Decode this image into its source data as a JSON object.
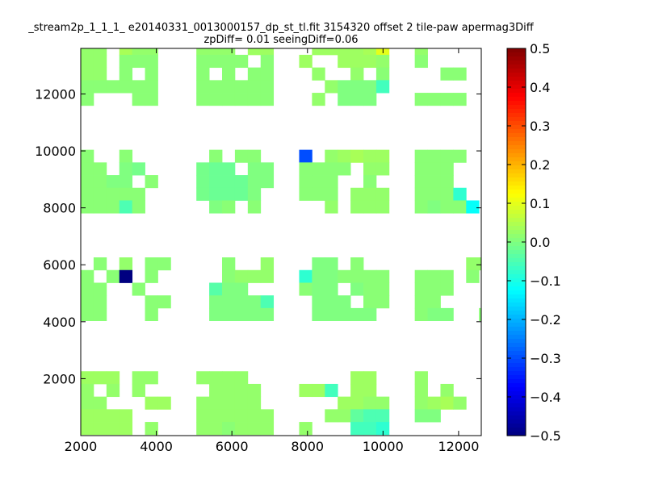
{
  "chart_data": {
    "type": "heatmap",
    "title_lines": [
      "_stream2p_1_1_1_ e20140331_0013000157_dp_st_tl.fit 3154320 offset 2 tile-paw apermag3Diff",
      "zpDiff= 0.01 seeingDiff=0.06"
    ],
    "xlabel": "",
    "ylabel": "",
    "xlim": [
      2000,
      12600
    ],
    "ylim": [
      0,
      13600
    ],
    "xticks": [
      2000,
      4000,
      6000,
      8000,
      10000,
      12000
    ],
    "yticks": [
      2000,
      4000,
      6000,
      8000,
      10000,
      12000
    ],
    "xtick_labels": [
      "2000",
      "4000",
      "6000",
      "8000",
      "10000",
      "12000"
    ],
    "ytick_labels": [
      "2000",
      "4000",
      "6000",
      "8000",
      "10000",
      "12000"
    ],
    "cell_size": [
      340,
      445
    ],
    "colormap": "jet",
    "colorbar": {
      "vmin": -0.5,
      "vmax": 0.5,
      "ticks": [
        0.5,
        0.4,
        0.3,
        0.2,
        0.1,
        0.0,
        -0.1,
        -0.2,
        -0.3,
        -0.4,
        -0.5
      ],
      "tick_labels": [
        "0.5",
        "0.4",
        "0.3",
        "0.2",
        "0.1",
        "0.0",
        "−0.1",
        "−0.2",
        "−0.3",
        "−0.4",
        "−0.5"
      ]
    },
    "grid": false,
    "cells": [
      [
        2000,
        13375,
        0.02
      ],
      [
        2340,
        13375,
        0.02
      ],
      [
        3020,
        13375,
        0.04
      ],
      [
        3360,
        13375,
        0.02
      ],
      [
        3700,
        13375,
        0.02
      ],
      [
        5060,
        13375,
        0.02
      ],
      [
        5400,
        13375,
        0.02
      ],
      [
        5740,
        13375,
        0.02
      ],
      [
        6420,
        13375,
        0.03
      ],
      [
        6760,
        13375,
        0.03
      ],
      [
        8120,
        13375,
        0.03
      ],
      [
        8460,
        13375,
        0.03
      ],
      [
        8800,
        13375,
        0.03
      ],
      [
        9140,
        13375,
        0.03
      ],
      [
        9480,
        13375,
        0.04
      ],
      [
        9820,
        13375,
        0.1
      ],
      [
        10840,
        13375,
        0.02
      ],
      [
        2000,
        12930,
        0.02
      ],
      [
        2340,
        12930,
        0.02
      ],
      [
        3020,
        12930,
        0.01
      ],
      [
        3360,
        12930,
        0.01
      ],
      [
        3700,
        12930,
        0.01
      ],
      [
        5060,
        12930,
        0.01
      ],
      [
        5400,
        12930,
        0.01
      ],
      [
        5740,
        12930,
        0.01
      ],
      [
        6080,
        12930,
        0.01
      ],
      [
        6760,
        12930,
        0.01
      ],
      [
        7780,
        12930,
        0.03
      ],
      [
        8800,
        12930,
        0.03
      ],
      [
        9140,
        12930,
        0.03
      ],
      [
        9480,
        12930,
        0.03
      ],
      [
        9820,
        12930,
        0.02
      ],
      [
        10840,
        12930,
        0.01
      ],
      [
        2000,
        12485,
        0.02
      ],
      [
        2340,
        12485,
        0.02
      ],
      [
        3020,
        12485,
        0.01
      ],
      [
        3700,
        12485,
        0.01
      ],
      [
        5060,
        12485,
        0.01
      ],
      [
        5740,
        12485,
        0.01
      ],
      [
        6420,
        12485,
        0.01
      ],
      [
        6760,
        12485,
        0.01
      ],
      [
        8120,
        12485,
        0.02
      ],
      [
        9140,
        12485,
        0.02
      ],
      [
        9820,
        12485,
        0.01
      ],
      [
        11520,
        12485,
        0.01
      ],
      [
        11860,
        12485,
        0.01
      ],
      [
        2000,
        12040,
        0.01
      ],
      [
        2340,
        12040,
        0.01
      ],
      [
        2680,
        12040,
        0.01
      ],
      [
        3020,
        12040,
        0.01
      ],
      [
        3360,
        12040,
        0.01
      ],
      [
        3700,
        12040,
        0.01
      ],
      [
        5060,
        12040,
        0.01
      ],
      [
        5400,
        12040,
        0.01
      ],
      [
        5740,
        12040,
        0.01
      ],
      [
        6080,
        12040,
        0.01
      ],
      [
        6420,
        12040,
        0.01
      ],
      [
        6760,
        12040,
        0.01
      ],
      [
        8460,
        12040,
        0.02
      ],
      [
        8800,
        12040,
        0.0
      ],
      [
        9140,
        12040,
        0.0
      ],
      [
        9480,
        12040,
        0.0
      ],
      [
        9820,
        12040,
        -0.06
      ],
      [
        2000,
        11595,
        0.01
      ],
      [
        3360,
        11595,
        0.01
      ],
      [
        3700,
        11595,
        0.01
      ],
      [
        5060,
        11595,
        0.01
      ],
      [
        5400,
        11595,
        0.01
      ],
      [
        5740,
        11595,
        0.01
      ],
      [
        6080,
        11595,
        0.01
      ],
      [
        6420,
        11595,
        0.01
      ],
      [
        6760,
        11595,
        0.01
      ],
      [
        8120,
        11595,
        0.02
      ],
      [
        8800,
        11595,
        0.0
      ],
      [
        9140,
        11595,
        0.0
      ],
      [
        9480,
        11595,
        0.0
      ],
      [
        10840,
        11595,
        0.01
      ],
      [
        11180,
        11595,
        0.01
      ],
      [
        11520,
        11595,
        0.01
      ],
      [
        11860,
        11595,
        0.01
      ],
      [
        2000,
        9595,
        0.01
      ],
      [
        3020,
        9595,
        0.01
      ],
      [
        5400,
        9595,
        0.01
      ],
      [
        6080,
        9595,
        0.01
      ],
      [
        6420,
        9595,
        0.01
      ],
      [
        7780,
        9595,
        -0.3
      ],
      [
        8460,
        9595,
        0.02
      ],
      [
        8800,
        9595,
        0.03
      ],
      [
        9140,
        9595,
        0.04
      ],
      [
        9480,
        9595,
        0.03
      ],
      [
        9820,
        9595,
        0.03
      ],
      [
        10840,
        9595,
        0.01
      ],
      [
        11180,
        9595,
        0.01
      ],
      [
        11520,
        9595,
        0.01
      ],
      [
        11860,
        9595,
        0.01
      ],
      [
        2000,
        9150,
        0.01
      ],
      [
        2340,
        9150,
        0.01
      ],
      [
        3020,
        9150,
        0.0
      ],
      [
        3360,
        9150,
        -0.01
      ],
      [
        5060,
        9150,
        -0.01
      ],
      [
        5400,
        9150,
        -0.02
      ],
      [
        5740,
        9150,
        -0.02
      ],
      [
        6420,
        9150,
        0.0
      ],
      [
        6760,
        9150,
        0.0
      ],
      [
        7780,
        9150,
        0.01
      ],
      [
        8120,
        9150,
        0.01
      ],
      [
        8460,
        9150,
        0.01
      ],
      [
        8800,
        9150,
        0.01
      ],
      [
        9480,
        9150,
        0.02
      ],
      [
        9820,
        9150,
        0.02
      ],
      [
        10840,
        9150,
        0.01
      ],
      [
        11180,
        9150,
        0.01
      ],
      [
        11520,
        9150,
        0.01
      ],
      [
        2000,
        8705,
        0.01
      ],
      [
        2340,
        8705,
        0.01
      ],
      [
        2680,
        8705,
        0.0
      ],
      [
        3020,
        8705,
        0.0
      ],
      [
        3700,
        8705,
        0.01
      ],
      [
        5060,
        8705,
        -0.01
      ],
      [
        5400,
        8705,
        -0.02
      ],
      [
        5740,
        8705,
        -0.02
      ],
      [
        6080,
        8705,
        -0.02
      ],
      [
        6420,
        8705,
        0.0
      ],
      [
        6760,
        8705,
        0.0
      ],
      [
        7780,
        8705,
        0.01
      ],
      [
        8120,
        8705,
        0.01
      ],
      [
        8460,
        8705,
        0.01
      ],
      [
        9480,
        8705,
        0.01
      ],
      [
        10840,
        8705,
        0.01
      ],
      [
        11180,
        8705,
        0.01
      ],
      [
        11520,
        8705,
        0.01
      ],
      [
        2000,
        8260,
        0.01
      ],
      [
        2340,
        8260,
        0.01
      ],
      [
        2680,
        8260,
        0.01
      ],
      [
        3020,
        8260,
        0.01
      ],
      [
        3360,
        8260,
        0.01
      ],
      [
        5060,
        8260,
        -0.01
      ],
      [
        5400,
        8260,
        -0.02
      ],
      [
        5740,
        8260,
        -0.02
      ],
      [
        6080,
        8260,
        -0.02
      ],
      [
        6420,
        8260,
        0.0
      ],
      [
        7780,
        8260,
        0.01
      ],
      [
        8120,
        8260,
        0.01
      ],
      [
        8460,
        8260,
        0.01
      ],
      [
        9140,
        8260,
        0.02
      ],
      [
        9480,
        8260,
        0.02
      ],
      [
        9820,
        8260,
        0.02
      ],
      [
        10840,
        8260,
        0.01
      ],
      [
        11180,
        8260,
        0.01
      ],
      [
        11520,
        8260,
        0.01
      ],
      [
        11860,
        8260,
        -0.08
      ],
      [
        2000,
        7815,
        0.01
      ],
      [
        2340,
        7815,
        0.01
      ],
      [
        2680,
        7815,
        0.01
      ],
      [
        3020,
        7815,
        -0.05
      ],
      [
        3360,
        7815,
        0.01
      ],
      [
        5400,
        7815,
        0.0
      ],
      [
        5740,
        7815,
        0.01
      ],
      [
        6420,
        7815,
        0.01
      ],
      [
        8460,
        7815,
        0.02
      ],
      [
        9140,
        7815,
        0.02
      ],
      [
        9480,
        7815,
        0.02
      ],
      [
        9820,
        7815,
        0.02
      ],
      [
        10840,
        7815,
        0.01
      ],
      [
        11180,
        7815,
        0.0
      ],
      [
        11520,
        7815,
        0.01
      ],
      [
        11860,
        7815,
        0.01
      ],
      [
        12200,
        7815,
        -0.12
      ],
      [
        2340,
        5815,
        0.01
      ],
      [
        3020,
        5815,
        0.02
      ],
      [
        3700,
        5815,
        0.01
      ],
      [
        4040,
        5815,
        0.01
      ],
      [
        5740,
        5815,
        0.01
      ],
      [
        6760,
        5815,
        0.02
      ],
      [
        8120,
        5815,
        0.0
      ],
      [
        8460,
        5815,
        0.0
      ],
      [
        9140,
        5815,
        0.01
      ],
      [
        12200,
        5815,
        0.02
      ],
      [
        12540,
        5815,
        0.02
      ],
      [
        2000,
        5370,
        0.01
      ],
      [
        2680,
        5370,
        0.01
      ],
      [
        3020,
        5370,
        -0.5
      ],
      [
        3700,
        5370,
        0.01
      ],
      [
        5740,
        5370,
        0.01
      ],
      [
        6080,
        5370,
        0.02
      ],
      [
        6420,
        5370,
        0.02
      ],
      [
        6760,
        5370,
        0.02
      ],
      [
        7780,
        5370,
        -0.08
      ],
      [
        8120,
        5370,
        0.0
      ],
      [
        8460,
        5370,
        0.0
      ],
      [
        8800,
        5370,
        0.01
      ],
      [
        9140,
        5370,
        0.01
      ],
      [
        9480,
        5370,
        0.01
      ],
      [
        9820,
        5370,
        0.01
      ],
      [
        10840,
        5370,
        0.01
      ],
      [
        11180,
        5370,
        0.01
      ],
      [
        11520,
        5370,
        0.01
      ],
      [
        12200,
        5370,
        0.01
      ],
      [
        2000,
        4925,
        0.01
      ],
      [
        2340,
        4925,
        0.01
      ],
      [
        3360,
        4925,
        0.01
      ],
      [
        5400,
        4925,
        -0.04
      ],
      [
        5740,
        4925,
        0.0
      ],
      [
        6080,
        4925,
        0.0
      ],
      [
        7780,
        4925,
        0.01
      ],
      [
        8120,
        4925,
        0.0
      ],
      [
        8460,
        4925,
        0.0
      ],
      [
        9140,
        4925,
        0.0
      ],
      [
        9480,
        4925,
        0.01
      ],
      [
        9820,
        4925,
        0.01
      ],
      [
        10840,
        4925,
        0.01
      ],
      [
        11180,
        4925,
        0.01
      ],
      [
        11520,
        4925,
        0.01
      ],
      [
        2000,
        4480,
        0.01
      ],
      [
        2340,
        4480,
        0.01
      ],
      [
        3700,
        4480,
        0.01
      ],
      [
        4040,
        4480,
        0.01
      ],
      [
        5400,
        4480,
        0.0
      ],
      [
        5740,
        4480,
        0.0
      ],
      [
        6080,
        4480,
        0.0
      ],
      [
        6420,
        4480,
        0.0
      ],
      [
        6760,
        4480,
        -0.05
      ],
      [
        8120,
        4480,
        0.0
      ],
      [
        8460,
        4480,
        0.0
      ],
      [
        8800,
        4480,
        0.0
      ],
      [
        9480,
        4480,
        0.01
      ],
      [
        9820,
        4480,
        0.01
      ],
      [
        10840,
        4480,
        0.01
      ],
      [
        11180,
        4480,
        0.01
      ],
      [
        2000,
        4035,
        0.01
      ],
      [
        2340,
        4035,
        0.01
      ],
      [
        3700,
        4035,
        0.01
      ],
      [
        5400,
        4035,
        0.0
      ],
      [
        5740,
        4035,
        0.0
      ],
      [
        6080,
        4035,
        0.0
      ],
      [
        6420,
        4035,
        0.0
      ],
      [
        6760,
        4035,
        0.0
      ],
      [
        8120,
        4035,
        0.0
      ],
      [
        8460,
        4035,
        0.0
      ],
      [
        8800,
        4035,
        0.0
      ],
      [
        9140,
        4035,
        0.0
      ],
      [
        9480,
        4035,
        0.0
      ],
      [
        10840,
        4035,
        0.01
      ],
      [
        11180,
        4035,
        0.0
      ],
      [
        11520,
        4035,
        0.0
      ],
      [
        12540,
        4035,
        0.01
      ],
      [
        2000,
        1815,
        0.03
      ],
      [
        2340,
        1815,
        0.03
      ],
      [
        2680,
        1815,
        0.03
      ],
      [
        3360,
        1815,
        0.02
      ],
      [
        3700,
        1815,
        0.02
      ],
      [
        5060,
        1815,
        0.02
      ],
      [
        5400,
        1815,
        0.02
      ],
      [
        5740,
        1815,
        0.02
      ],
      [
        6080,
        1815,
        0.02
      ],
      [
        9140,
        1815,
        0.03
      ],
      [
        9480,
        1815,
        0.03
      ],
      [
        10840,
        1815,
        0.02
      ],
      [
        2000,
        1370,
        0.02
      ],
      [
        2680,
        1370,
        0.02
      ],
      [
        3360,
        1370,
        0.02
      ],
      [
        5400,
        1370,
        0.02
      ],
      [
        5740,
        1370,
        0.02
      ],
      [
        6080,
        1370,
        0.02
      ],
      [
        6420,
        1370,
        0.02
      ],
      [
        7780,
        1370,
        0.03
      ],
      [
        8120,
        1370,
        0.03
      ],
      [
        8460,
        1370,
        -0.06
      ],
      [
        9140,
        1370,
        0.03
      ],
      [
        9480,
        1370,
        0.03
      ],
      [
        10840,
        1370,
        0.02
      ],
      [
        11520,
        1370,
        0.02
      ],
      [
        2000,
        925,
        0.02
      ],
      [
        2340,
        925,
        0.02
      ],
      [
        3700,
        925,
        0.03
      ],
      [
        4040,
        925,
        0.03
      ],
      [
        5060,
        925,
        0.02
      ],
      [
        5400,
        925,
        0.02
      ],
      [
        5740,
        925,
        0.02
      ],
      [
        6080,
        925,
        0.02
      ],
      [
        6420,
        925,
        0.02
      ],
      [
        8800,
        925,
        0.03
      ],
      [
        9140,
        925,
        0.03
      ],
      [
        9480,
        925,
        0.02
      ],
      [
        9820,
        925,
        0.02
      ],
      [
        10840,
        925,
        0.02
      ],
      [
        11180,
        925,
        0.03
      ],
      [
        11520,
        925,
        0.04
      ],
      [
        11860,
        925,
        0.02
      ],
      [
        2000,
        480,
        0.03
      ],
      [
        2340,
        480,
        0.03
      ],
      [
        2680,
        480,
        0.03
      ],
      [
        3020,
        480,
        0.03
      ],
      [
        5060,
        480,
        0.02
      ],
      [
        5400,
        480,
        0.02
      ],
      [
        5740,
        480,
        0.02
      ],
      [
        6080,
        480,
        0.02
      ],
      [
        6420,
        480,
        0.02
      ],
      [
        6760,
        480,
        0.02
      ],
      [
        8460,
        480,
        0.02
      ],
      [
        8800,
        480,
        0.02
      ],
      [
        9140,
        480,
        -0.03
      ],
      [
        9480,
        480,
        -0.05
      ],
      [
        9820,
        480,
        -0.05
      ],
      [
        10840,
        480,
        0.0
      ],
      [
        11180,
        480,
        0.0
      ],
      [
        2000,
        35,
        0.03
      ],
      [
        2340,
        35,
        0.03
      ],
      [
        2680,
        35,
        0.03
      ],
      [
        3020,
        35,
        0.03
      ],
      [
        3700,
        35,
        0.02
      ],
      [
        5060,
        35,
        0.02
      ],
      [
        5400,
        35,
        0.02
      ],
      [
        5740,
        35,
        0.01
      ],
      [
        6080,
        35,
        0.02
      ],
      [
        6420,
        35,
        0.02
      ],
      [
        6760,
        35,
        0.02
      ],
      [
        7780,
        35,
        0.02
      ],
      [
        9140,
        35,
        -0.06
      ],
      [
        9480,
        35,
        -0.06
      ],
      [
        9820,
        35,
        -0.08
      ]
    ]
  }
}
